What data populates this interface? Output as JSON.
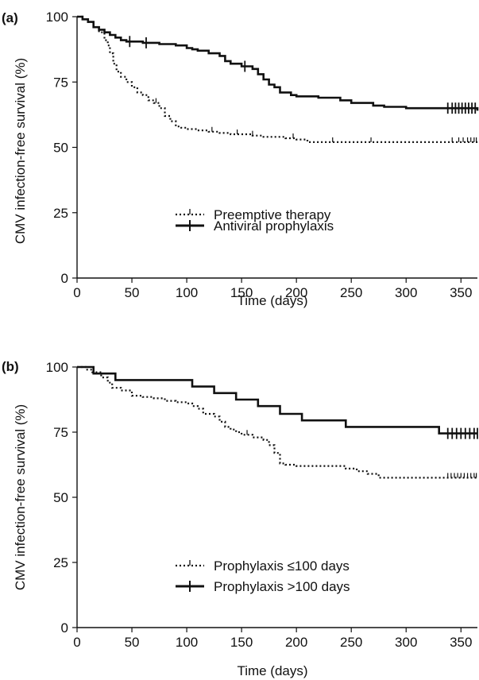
{
  "chart_data": [
    {
      "type": "line",
      "step": true,
      "panel_label": "(a)",
      "xlabel": "Time (days)",
      "ylabel": "CMV infection-free survival (%)",
      "xlim": [
        0,
        365
      ],
      "ylim": [
        0,
        100
      ],
      "xticks": [
        0,
        50,
        100,
        150,
        200,
        250,
        300,
        350
      ],
      "yticks": [
        0,
        25,
        50,
        75,
        100
      ],
      "legend_placement": "center",
      "series": [
        {
          "name": "Preemptive therapy",
          "style": "dotted",
          "points": [
            [
              0,
              100
            ],
            [
              5,
              99
            ],
            [
              10,
              98
            ],
            [
              15,
              96
            ],
            [
              20,
              94
            ],
            [
              25,
              91
            ],
            [
              28,
              89
            ],
            [
              30,
              86
            ],
            [
              33,
              82
            ],
            [
              36,
              79
            ],
            [
              40,
              77
            ],
            [
              45,
              75
            ],
            [
              50,
              73
            ],
            [
              55,
              71
            ],
            [
              60,
              70
            ],
            [
              65,
              68
            ],
            [
              70,
              67
            ],
            [
              75,
              65
            ],
            [
              80,
              62
            ],
            [
              85,
              60
            ],
            [
              90,
              58
            ],
            [
              95,
              57.5
            ],
            [
              100,
              57
            ],
            [
              110,
              56.5
            ],
            [
              120,
              56
            ],
            [
              130,
              55.5
            ],
            [
              140,
              55
            ],
            [
              150,
              55
            ],
            [
              160,
              54.5
            ],
            [
              170,
              54
            ],
            [
              180,
              54
            ],
            [
              190,
              53.5
            ],
            [
              200,
              53
            ],
            [
              210,
              52
            ],
            [
              220,
              52
            ],
            [
              250,
              52
            ],
            [
              300,
              52
            ],
            [
              330,
              52
            ],
            [
              365,
              52
            ]
          ],
          "censor_x": [
            72,
            123,
            146,
            160,
            197,
            233,
            268,
            342,
            348,
            352,
            356,
            359,
            362,
            364
          ]
        },
        {
          "name": "Antiviral prophylaxis",
          "style": "solid",
          "points": [
            [
              0,
              100
            ],
            [
              5,
              99
            ],
            [
              10,
              98
            ],
            [
              15,
              96
            ],
            [
              20,
              95
            ],
            [
              25,
              94
            ],
            [
              30,
              93
            ],
            [
              35,
              92
            ],
            [
              40,
              91
            ],
            [
              45,
              90.5
            ],
            [
              60,
              90
            ],
            [
              75,
              89.5
            ],
            [
              90,
              89
            ],
            [
              100,
              88
            ],
            [
              105,
              87.5
            ],
            [
              110,
              87
            ],
            [
              120,
              86
            ],
            [
              130,
              85
            ],
            [
              135,
              83
            ],
            [
              140,
              82
            ],
            [
              150,
              81
            ],
            [
              160,
              80
            ],
            [
              165,
              78
            ],
            [
              170,
              76
            ],
            [
              175,
              74
            ],
            [
              180,
              73
            ],
            [
              185,
              71
            ],
            [
              195,
              70
            ],
            [
              200,
              69.5
            ],
            [
              220,
              69
            ],
            [
              240,
              68
            ],
            [
              250,
              67
            ],
            [
              270,
              66
            ],
            [
              280,
              65.5
            ],
            [
              300,
              65
            ],
            [
              330,
              65
            ],
            [
              360,
              65
            ],
            [
              365,
              64
            ]
          ],
          "censor_x": [
            48,
            63,
            153,
            338,
            342,
            345,
            348,
            351,
            354,
            357,
            360,
            363
          ]
        }
      ]
    },
    {
      "type": "line",
      "step": true,
      "panel_label": "(b)",
      "xlabel": "Time (days)",
      "ylabel": "CMV infection-free survival (%)",
      "xlim": [
        0,
        365
      ],
      "ylim": [
        0,
        100
      ],
      "xticks": [
        0,
        50,
        100,
        150,
        200,
        250,
        300,
        350
      ],
      "yticks": [
        0,
        25,
        50,
        75,
        100
      ],
      "legend_placement": "bottom-center",
      "series": [
        {
          "name": "Prophylaxis ≤100 days",
          "style": "dotted",
          "points": [
            [
              0,
              100
            ],
            [
              8,
              99
            ],
            [
              14,
              98
            ],
            [
              22,
              96
            ],
            [
              28,
              94
            ],
            [
              32,
              92
            ],
            [
              40,
              91
            ],
            [
              50,
              89
            ],
            [
              60,
              88.5
            ],
            [
              70,
              88
            ],
            [
              80,
              87
            ],
            [
              90,
              86.5
            ],
            [
              100,
              86
            ],
            [
              105,
              85
            ],
            [
              110,
              84
            ],
            [
              115,
              82
            ],
            [
              125,
              81
            ],
            [
              130,
              79
            ],
            [
              135,
              77
            ],
            [
              140,
              76
            ],
            [
              145,
              75
            ],
            [
              150,
              74
            ],
            [
              160,
              73
            ],
            [
              170,
              72
            ],
            [
              175,
              70
            ],
            [
              180,
              67
            ],
            [
              185,
              63
            ],
            [
              190,
              62.5
            ],
            [
              200,
              62
            ],
            [
              230,
              62
            ],
            [
              245,
              61
            ],
            [
              255,
              60
            ],
            [
              265,
              59
            ],
            [
              275,
              57.5
            ],
            [
              300,
              57.5
            ],
            [
              340,
              57.5
            ],
            [
              365,
              57.5
            ]
          ],
          "censor_x": [
            155,
            338,
            341,
            344,
            347,
            350,
            353,
            356,
            359,
            362,
            364
          ]
        },
        {
          "name": "Prophylaxis >100 days",
          "style": "solid",
          "points": [
            [
              0,
              100
            ],
            [
              15,
              97.5
            ],
            [
              35,
              95
            ],
            [
              105,
              92.5
            ],
            [
              125,
              90
            ],
            [
              145,
              87.5
            ],
            [
              165,
              85
            ],
            [
              185,
              82
            ],
            [
              205,
              79.5
            ],
            [
              245,
              77
            ],
            [
              275,
              77
            ],
            [
              330,
              74.5
            ],
            [
              365,
              74.5
            ]
          ],
          "censor_x": [
            338,
            342,
            346,
            350,
            354,
            358,
            362,
            365
          ]
        }
      ]
    }
  ]
}
